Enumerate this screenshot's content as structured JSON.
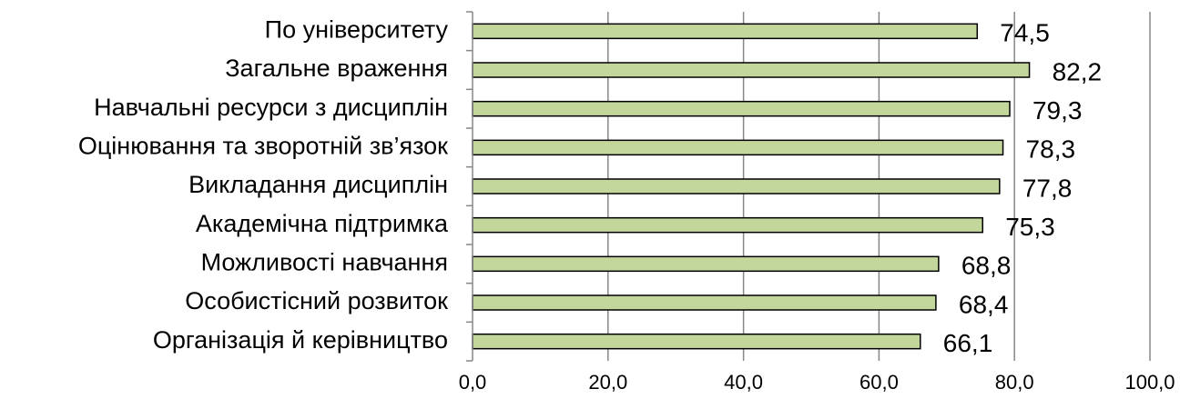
{
  "chart_data": {
    "type": "bar",
    "orientation": "horizontal",
    "categories": [
      "По університету",
      "Загальне враження",
      "Навчальні ресурси з дисциплін",
      "Оцінювання та зворотній зв’язок",
      "Викладання дисциплін",
      "Академічна підтримка",
      "Можливості навчання",
      "Особистісний розвиток",
      "Організація й керівництво"
    ],
    "values": [
      74.5,
      82.2,
      79.3,
      78.3,
      77.8,
      75.3,
      68.8,
      68.4,
      66.1
    ],
    "value_labels": [
      "74,5",
      "82,2",
      "79,3",
      "78,3",
      "77,8",
      "75,3",
      "68,8",
      "68,4",
      "66,1"
    ],
    "xlim": [
      0,
      100
    ],
    "x_ticks": [
      0,
      20,
      40,
      60,
      80,
      100
    ],
    "x_tick_labels": [
      "0,0",
      "20,0",
      "40,0",
      "60,0",
      "80,0",
      "100,0"
    ],
    "grid": "vertical",
    "legend": "none",
    "title": "",
    "xlabel": "",
    "ylabel": "",
    "colors": {
      "bar_fill": "#c3d69b",
      "bar_stroke": "#000000",
      "gridline": "#878787",
      "axis": "#878787"
    }
  }
}
